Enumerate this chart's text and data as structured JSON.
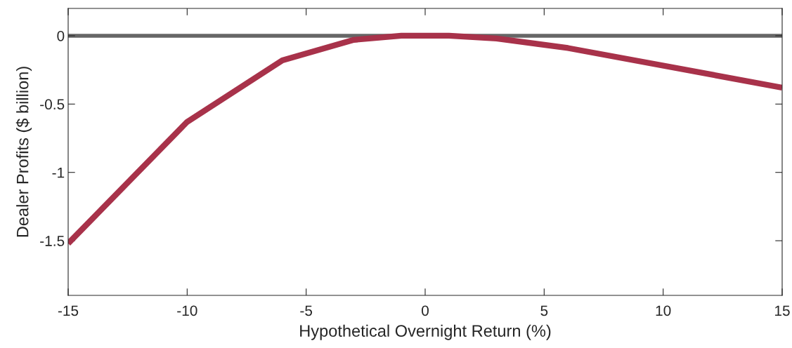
{
  "chart_data": {
    "type": "line",
    "xlabel": "Hypothetical Overnight Return (%)",
    "ylabel": "Dealer Profits ($ billion)",
    "x": [
      -15,
      -10,
      -6,
      -3,
      -1,
      0,
      1,
      3,
      6,
      15
    ],
    "series": [
      {
        "color": "#a8324a",
        "values": [
          -1.52,
          -0.63,
          -0.18,
          -0.03,
          0.0,
          0.0,
          0.0,
          -0.02,
          -0.09,
          -0.38
        ]
      }
    ],
    "xlim": [
      -15,
      15
    ],
    "xticks": [
      -15,
      -10,
      -5,
      0,
      5,
      10,
      15
    ],
    "ylim": [
      -1.9,
      0.2
    ],
    "yticks": [
      -1.5,
      -1,
      -0.5,
      0
    ],
    "ref_lines": [
      {
        "axis": "y",
        "value": 0,
        "color": "#666666"
      }
    ],
    "grid": false,
    "marker": "none",
    "line_style": "solid"
  }
}
